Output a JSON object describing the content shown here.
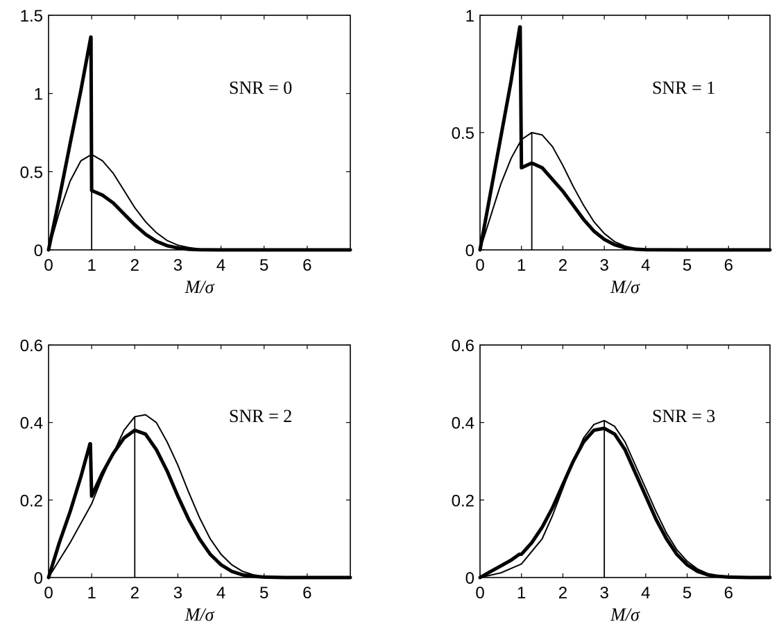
{
  "chart_data": [
    {
      "type": "line",
      "annotation": "SNR = 0",
      "xlabel": "M/σ",
      "xlim": [
        0,
        7
      ],
      "ylim": [
        0,
        1.5
      ],
      "xticks": [
        "0",
        "1",
        "2",
        "3",
        "4",
        "5",
        "6"
      ],
      "yticks": [
        "0",
        "0.5",
        "1",
        "1.5"
      ],
      "marker_line_x": 1.0,
      "series": [
        {
          "style": "thin",
          "x": [
            0,
            0.25,
            0.5,
            0.75,
            1.0,
            1.25,
            1.5,
            1.75,
            2.0,
            2.25,
            2.5,
            2.75,
            3.0,
            3.25,
            3.5,
            4.0,
            5.0,
            7.0
          ],
          "y": [
            0,
            0.24,
            0.44,
            0.57,
            0.61,
            0.57,
            0.49,
            0.38,
            0.27,
            0.18,
            0.11,
            0.06,
            0.03,
            0.015,
            0.006,
            0,
            0,
            0
          ]
        },
        {
          "style": "thick",
          "x": [
            0,
            0.25,
            0.5,
            0.75,
            0.98,
            0.985,
            1.0,
            1.25,
            1.5,
            1.75,
            2.0,
            2.25,
            2.5,
            2.75,
            3.0,
            3.25,
            3.5,
            4.0,
            5.0,
            7.0
          ],
          "y": [
            0,
            0.33,
            0.68,
            1.02,
            1.36,
            1.36,
            0.38,
            0.35,
            0.3,
            0.23,
            0.16,
            0.1,
            0.055,
            0.027,
            0.012,
            0.004,
            0.001,
            0,
            0,
            0
          ]
        }
      ]
    },
    {
      "type": "line",
      "annotation": "SNR = 1",
      "xlabel": "M/σ",
      "xlim": [
        0,
        7
      ],
      "ylim": [
        0,
        1
      ],
      "xticks": [
        "0",
        "1",
        "2",
        "3",
        "4",
        "5",
        "6"
      ],
      "yticks": [
        "0",
        "0.5",
        "1"
      ],
      "marker_line_x": 1.25,
      "series": [
        {
          "style": "thin",
          "x": [
            0,
            0.25,
            0.5,
            0.75,
            1.0,
            1.25,
            1.5,
            1.75,
            2.0,
            2.25,
            2.5,
            2.75,
            3.0,
            3.25,
            3.5,
            3.75,
            4.0,
            4.5,
            5.0,
            7.0
          ],
          "y": [
            0,
            0.14,
            0.28,
            0.39,
            0.47,
            0.5,
            0.49,
            0.44,
            0.36,
            0.27,
            0.19,
            0.12,
            0.07,
            0.035,
            0.016,
            0.006,
            0.002,
            0,
            0,
            0
          ]
        },
        {
          "style": "thick",
          "x": [
            0,
            0.25,
            0.5,
            0.75,
            0.96,
            0.97,
            1.0,
            1.25,
            1.5,
            1.75,
            2.0,
            2.25,
            2.5,
            2.75,
            3.0,
            3.25,
            3.5,
            3.75,
            4.0,
            5.0,
            7.0
          ],
          "y": [
            0,
            0.24,
            0.48,
            0.72,
            0.95,
            0.95,
            0.35,
            0.37,
            0.35,
            0.3,
            0.25,
            0.19,
            0.13,
            0.08,
            0.045,
            0.022,
            0.009,
            0.003,
            0.001,
            0,
            0
          ]
        }
      ]
    },
    {
      "type": "line",
      "annotation": "SNR = 2",
      "xlabel": "M/σ",
      "xlim": [
        0,
        7
      ],
      "ylim": [
        0,
        0.6
      ],
      "xticks": [
        "0",
        "1",
        "2",
        "3",
        "4",
        "5",
        "6"
      ],
      "yticks": [
        "0",
        "0.2",
        "0.4",
        "0.6"
      ],
      "marker_line_x": 2.0,
      "series": [
        {
          "style": "thin",
          "x": [
            0,
            0.25,
            0.5,
            0.75,
            1.0,
            1.25,
            1.5,
            1.75,
            2.0,
            2.25,
            2.5,
            2.75,
            3.0,
            3.25,
            3.5,
            3.75,
            4.0,
            4.25,
            4.5,
            4.75,
            5.0,
            5.5,
            7.0
          ],
          "y": [
            0,
            0.045,
            0.09,
            0.14,
            0.19,
            0.26,
            0.32,
            0.38,
            0.415,
            0.42,
            0.4,
            0.35,
            0.29,
            0.22,
            0.155,
            0.1,
            0.06,
            0.033,
            0.016,
            0.007,
            0.003,
            0,
            0
          ]
        },
        {
          "style": "thick",
          "x": [
            0,
            0.25,
            0.5,
            0.75,
            0.96,
            0.97,
            1.0,
            1.25,
            1.5,
            1.75,
            2.0,
            2.25,
            2.5,
            2.75,
            3.0,
            3.25,
            3.5,
            3.75,
            4.0,
            4.25,
            4.5,
            4.75,
            5.0,
            5.5,
            7.0
          ],
          "y": [
            0,
            0.09,
            0.17,
            0.26,
            0.345,
            0.345,
            0.21,
            0.27,
            0.32,
            0.36,
            0.38,
            0.37,
            0.33,
            0.275,
            0.21,
            0.15,
            0.1,
            0.06,
            0.033,
            0.016,
            0.007,
            0.003,
            0.001,
            0,
            0
          ]
        }
      ]
    },
    {
      "type": "line",
      "annotation": "SNR = 3",
      "xlabel": "M/σ",
      "xlim": [
        0,
        7
      ],
      "ylim": [
        0,
        0.6
      ],
      "xticks": [
        "0",
        "1",
        "2",
        "3",
        "4",
        "5",
        "6"
      ],
      "yticks": [
        "0",
        "0.2",
        "0.4",
        "0.6"
      ],
      "marker_line_x": 3.0,
      "series": [
        {
          "style": "thin",
          "x": [
            0,
            0.5,
            1.0,
            1.5,
            1.75,
            2.0,
            2.25,
            2.5,
            2.75,
            3.0,
            3.25,
            3.5,
            3.75,
            4.0,
            4.25,
            4.5,
            4.75,
            5.0,
            5.25,
            5.5,
            5.75,
            6.0,
            6.5,
            7.0
          ],
          "y": [
            0,
            0.012,
            0.035,
            0.1,
            0.16,
            0.23,
            0.3,
            0.36,
            0.395,
            0.405,
            0.39,
            0.35,
            0.29,
            0.23,
            0.17,
            0.115,
            0.072,
            0.042,
            0.022,
            0.01,
            0.005,
            0.002,
            0,
            0
          ]
        },
        {
          "style": "thick",
          "x": [
            0,
            0.25,
            0.5,
            0.75,
            0.95,
            0.96,
            1.0,
            1.25,
            1.5,
            1.75,
            2.0,
            2.25,
            2.5,
            2.75,
            3.0,
            3.25,
            3.5,
            3.75,
            4.0,
            4.25,
            4.5,
            4.75,
            5.0,
            5.25,
            5.5,
            5.75,
            6.0,
            6.5,
            7.0
          ],
          "y": [
            0,
            0.015,
            0.03,
            0.045,
            0.06,
            0.06,
            0.06,
            0.09,
            0.13,
            0.18,
            0.24,
            0.3,
            0.35,
            0.38,
            0.385,
            0.37,
            0.33,
            0.27,
            0.21,
            0.15,
            0.1,
            0.06,
            0.033,
            0.016,
            0.007,
            0.003,
            0.001,
            0,
            0
          ]
        }
      ]
    }
  ]
}
